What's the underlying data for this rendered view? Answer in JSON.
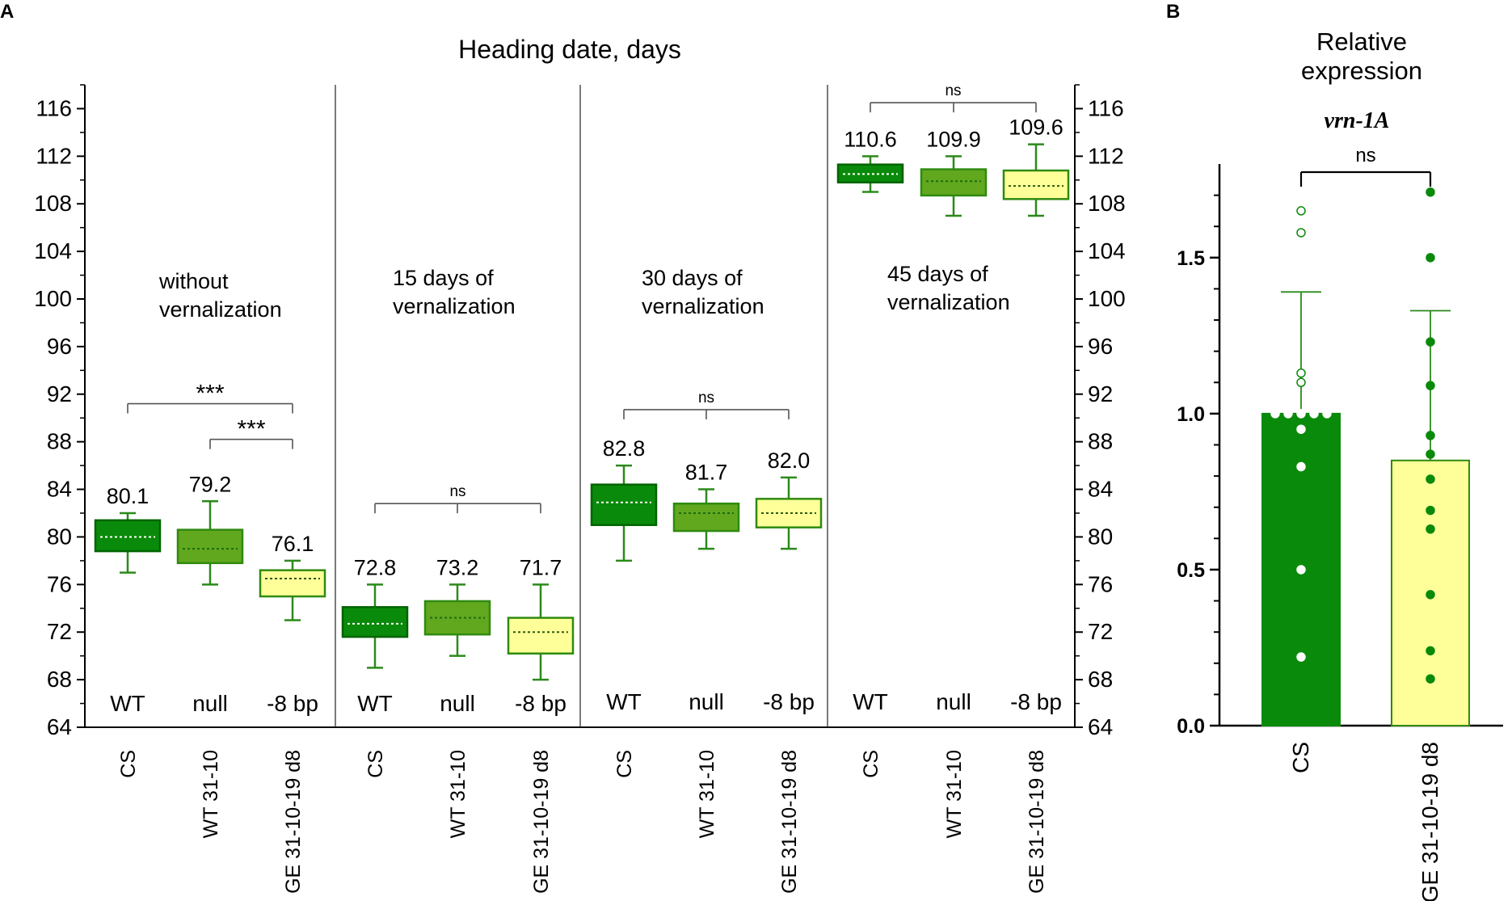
{
  "colors": {
    "dark_green": "#0a8a0a",
    "dark_green_stroke": "#006400",
    "mid_green": "#62a81e",
    "mid_green_stroke": "#2f8a10",
    "yellow": "#ffff99",
    "yellow_stroke": "#2f8a10",
    "whisker": "#2b8a1a",
    "bracket": "#555555"
  },
  "chart_data": [
    {
      "panel_label": "A",
      "type": "box",
      "title": "Heading date, days",
      "ylim": [
        64,
        118
      ],
      "yticks": [
        64,
        68,
        72,
        76,
        80,
        84,
        88,
        92,
        96,
        100,
        104,
        108,
        112,
        116
      ],
      "ytick_labels": [
        "64",
        "68",
        "72",
        "76",
        "80",
        "84",
        "88",
        "92",
        "96",
        "100",
        "104",
        "108",
        "112",
        "116"
      ],
      "genotype_labels": [
        "WT",
        "null",
        "-8 bp"
      ],
      "categories": [
        "CS",
        "WT 31-10",
        "GE 31-10-19 d8"
      ],
      "panels": [
        {
          "condition_line1": "without",
          "condition_line2": "vernalization",
          "boxes": [
            {
              "category": "CS",
              "genotype": "WT",
              "min": 77,
              "q1": 78.8,
              "median": 80.0,
              "q3": 81.4,
              "max": 82,
              "mean_label": "80.1",
              "style": "dark"
            },
            {
              "category": "WT 31-10",
              "genotype": "null",
              "min": 76,
              "q1": 77.8,
              "median": 79.0,
              "q3": 80.6,
              "max": 83,
              "mean_label": "79.2",
              "style": "mid"
            },
            {
              "category": "GE 31-10-19 d8",
              "genotype": "-8 bp",
              "min": 73,
              "q1": 75.0,
              "median": 76.5,
              "q3": 77.2,
              "max": 78,
              "mean_label": "76.1",
              "style": "yellow"
            }
          ],
          "brackets": [
            {
              "from": 0,
              "to": 2,
              "y": 91.2,
              "label": "***"
            },
            {
              "from": 1,
              "to": 2,
              "y": 88.2,
              "label": "***"
            }
          ]
        },
        {
          "condition_line1": "15 days of",
          "condition_line2": "vernalization",
          "boxes": [
            {
              "category": "CS",
              "genotype": "WT",
              "min": 69,
              "q1": 71.6,
              "median": 72.7,
              "q3": 74.1,
              "max": 76,
              "mean_label": "72.8",
              "style": "dark"
            },
            {
              "category": "WT 31-10",
              "genotype": "null",
              "min": 70,
              "q1": 71.8,
              "median": 73.2,
              "q3": 74.6,
              "max": 76,
              "mean_label": "73.2",
              "style": "mid"
            },
            {
              "category": "GE 31-10-19 d8",
              "genotype": "-8 bp",
              "min": 68,
              "q1": 70.2,
              "median": 72.0,
              "q3": 73.2,
              "max": 76,
              "mean_label": "71.7",
              "style": "yellow"
            }
          ],
          "brackets": [
            {
              "from": 0,
              "to": 2,
              "y": 82.8,
              "label": "ns",
              "mid_tick": 1
            }
          ]
        },
        {
          "condition_line1": "30 days of",
          "condition_line2": "vernalization",
          "boxes": [
            {
              "category": "CS",
              "genotype": "WT",
              "min": 78,
              "q1": 81.0,
              "median": 82.9,
              "q3": 84.4,
              "max": 86,
              "mean_label": "82.8",
              "style": "dark"
            },
            {
              "category": "WT 31-10",
              "genotype": "null",
              "min": 79,
              "q1": 80.5,
              "median": 82.0,
              "q3": 82.8,
              "max": 84,
              "mean_label": "81.7",
              "style": "mid"
            },
            {
              "category": "GE 31-10-19 d8",
              "genotype": "-8 bp",
              "min": 79,
              "q1": 80.8,
              "median": 82.0,
              "q3": 83.2,
              "max": 85,
              "mean_label": "82.0",
              "style": "yellow"
            }
          ],
          "brackets": [
            {
              "from": 0,
              "to": 2,
              "y": 90.7,
              "label": "ns",
              "mid_tick": 1
            }
          ]
        },
        {
          "condition_line1": "45 days of",
          "condition_line2": "vernalization",
          "boxes": [
            {
              "category": "CS",
              "genotype": "WT",
              "min": 109,
              "q1": 109.8,
              "median": 110.5,
              "q3": 111.3,
              "max": 112,
              "mean_label": "110.6",
              "style": "dark"
            },
            {
              "category": "WT 31-10",
              "genotype": "null",
              "min": 107,
              "q1": 108.7,
              "median": 109.9,
              "q3": 110.9,
              "max": 112,
              "mean_label": "109.9",
              "style": "mid"
            },
            {
              "category": "GE 31-10-19 d8",
              "genotype": "-8 bp",
              "min": 107,
              "q1": 108.4,
              "median": 109.5,
              "q3": 110.8,
              "max": 113,
              "mean_label": "109.6",
              "style": "yellow"
            }
          ],
          "brackets": [
            {
              "from": 0,
              "to": 2,
              "y": 116.5,
              "label": "ns",
              "mid_tick": 1
            }
          ]
        }
      ]
    },
    {
      "panel_label": "B",
      "type": "bar",
      "title_line1": "Relative",
      "title_line2": "expression",
      "gene": "vrn-1A",
      "ylim": [
        0,
        1.8
      ],
      "yticks": [
        0.0,
        0.5,
        1.0,
        1.5
      ],
      "ytick_labels": [
        "0.0",
        "0.5",
        "1.0",
        "1.5"
      ],
      "categories": [
        "CS",
        "GE 31-10-19 d8"
      ],
      "values": [
        1.0,
        0.85
      ],
      "error_upper": [
        1.39,
        1.33
      ],
      "points": [
        [
          0.22,
          0.5,
          0.83,
          0.95,
          1.0,
          1.0,
          1.0,
          1.0,
          1.0,
          1.1,
          1.13,
          1.58,
          1.65
        ],
        [
          0.15,
          0.24,
          0.42,
          0.63,
          0.69,
          0.79,
          0.87,
          0.93,
          1.09,
          1.23,
          1.5,
          1.71
        ]
      ],
      "bracket_label": "ns"
    }
  ]
}
